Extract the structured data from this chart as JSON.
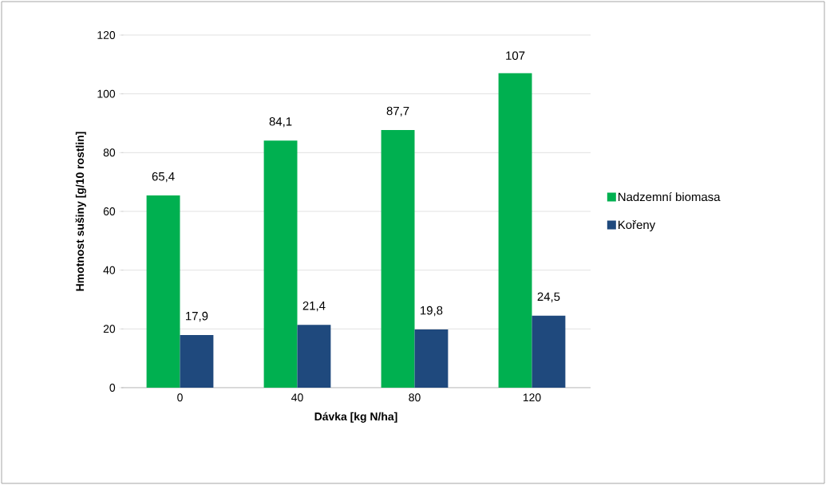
{
  "chart_data": {
    "type": "bar",
    "xlabel": "Dávka [kg N/ha]",
    "ylabel": "Hmotnost sušiny [g/10 rostlin]",
    "categories": [
      "0",
      "40",
      "80",
      "120"
    ],
    "series": [
      {
        "name": "Nadzemní biomasa",
        "color": "#00b050",
        "values": [
          65.4,
          84.1,
          87.7,
          107
        ],
        "value_labels": [
          "65,4",
          "84,1",
          "87,7",
          "107"
        ]
      },
      {
        "name": "Kořeny",
        "color": "#1f497d",
        "values": [
          17.9,
          21.4,
          19.8,
          24.5
        ],
        "value_labels": [
          "17,9",
          "21,4",
          "19,8",
          "24,5"
        ]
      }
    ],
    "ylim": [
      0,
      120
    ],
    "yticks": [
      0,
      20,
      40,
      60,
      80,
      100,
      120
    ],
    "grid": "y",
    "legend": "right"
  }
}
